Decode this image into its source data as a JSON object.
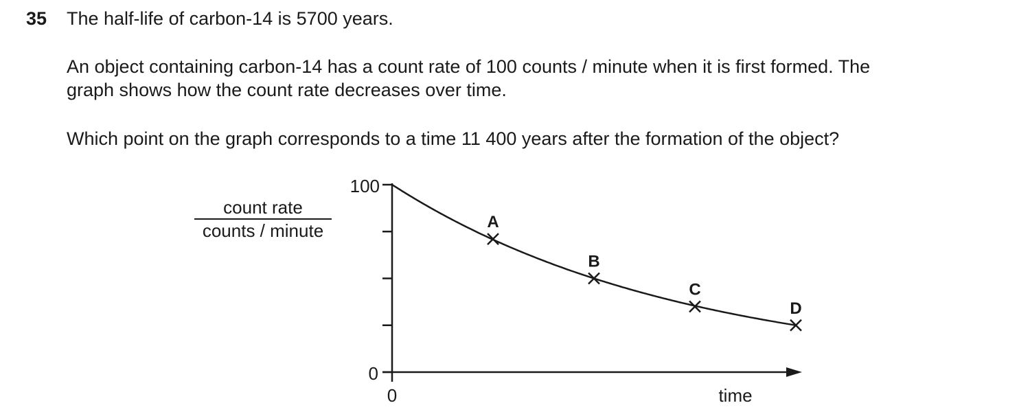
{
  "question": {
    "number": "35",
    "line1": "The half-life of carbon-14 is 5700 years.",
    "para1_line1": "An object containing carbon-14 has a count rate of 100 counts / minute when it is first formed. The",
    "para1_line2": "graph shows how the count rate decreases over time.",
    "prompt": "Which point on the graph corresponds to a time 11 400 years after the formation of the object?"
  },
  "chart_data": {
    "type": "line",
    "ylabel_top": "count rate",
    "ylabel_bottom": "counts / minute",
    "xlabel": "time",
    "y_tick_labels": [
      "0",
      "100"
    ],
    "x_tick_labels": [
      "0"
    ],
    "ylim": [
      0,
      100
    ],
    "y_ticks": [
      0,
      25,
      50,
      75,
      100
    ],
    "curve": "exponential decay from 100",
    "points": [
      {
        "label": "A",
        "y": 71
      },
      {
        "label": "B",
        "y": 50
      },
      {
        "label": "C",
        "y": 35
      },
      {
        "label": "D",
        "y": 25
      }
    ],
    "x_arrow": true,
    "grid": false
  }
}
